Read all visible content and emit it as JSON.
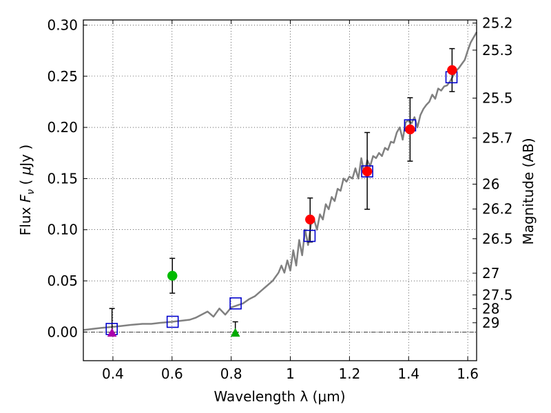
{
  "chart_data": {
    "type": "scatter",
    "xlabel": "Wavelength  λ (μm)",
    "ylabel_parts": [
      "Flux  ",
      "F",
      "ν",
      "  ( ",
      "μ",
      "Jy )"
    ],
    "ylabel_right": "Magnitude (AB)",
    "xlim": [
      0.3,
      1.63
    ],
    "ylim": [
      -0.028,
      0.305
    ],
    "grid": true,
    "x_ticks": [
      0.4,
      0.6,
      0.8,
      1.0,
      1.2,
      1.4,
      1.6
    ],
    "x_tick_labels": [
      "0.4",
      "0.6",
      "0.8",
      "1",
      "1.2",
      "1.4",
      "1.6"
    ],
    "y_ticks": [
      0.0,
      0.05,
      0.1,
      0.15,
      0.2,
      0.25,
      0.3
    ],
    "y_tick_labels": [
      "0.00",
      "0.05",
      "0.10",
      "0.15",
      "0.20",
      "0.25",
      "0.30"
    ],
    "right_ticks": [
      {
        "flux": 0.302,
        "label": "25.2"
      },
      {
        "flux": 0.2755,
        "label": "25.3"
      },
      {
        "flux": 0.2286,
        "label": "25.5"
      },
      {
        "flux": 0.1897,
        "label": "25.7"
      },
      {
        "flux": 0.1445,
        "label": "26"
      },
      {
        "flux": 0.1202,
        "label": "26.2"
      },
      {
        "flux": 0.0912,
        "label": "26.5"
      },
      {
        "flux": 0.0575,
        "label": "27"
      },
      {
        "flux": 0.0363,
        "label": "27.5"
      },
      {
        "flux": 0.0229,
        "label": "28"
      },
      {
        "flux": 0.0091,
        "label": "29"
      }
    ],
    "series": [
      {
        "name": "model spectrum",
        "kind": "line",
        "color": "#808080",
        "x": [
          0.3,
          0.33,
          0.36,
          0.4,
          0.43,
          0.46,
          0.5,
          0.53,
          0.56,
          0.6,
          0.63,
          0.66,
          0.68,
          0.7,
          0.72,
          0.74,
          0.76,
          0.78,
          0.8,
          0.82,
          0.84,
          0.86,
          0.88,
          0.9,
          0.92,
          0.94,
          0.96,
          0.97,
          0.98,
          0.99,
          1.0,
          1.01,
          1.02,
          1.03,
          1.04,
          1.05,
          1.06,
          1.07,
          1.08,
          1.09,
          1.1,
          1.11,
          1.12,
          1.13,
          1.14,
          1.15,
          1.16,
          1.17,
          1.18,
          1.19,
          1.2,
          1.21,
          1.22,
          1.23,
          1.24,
          1.25,
          1.26,
          1.27,
          1.28,
          1.29,
          1.3,
          1.31,
          1.32,
          1.33,
          1.34,
          1.35,
          1.36,
          1.37,
          1.38,
          1.39,
          1.4,
          1.41,
          1.42,
          1.43,
          1.44,
          1.45,
          1.46,
          1.47,
          1.48,
          1.49,
          1.5,
          1.51,
          1.52,
          1.53,
          1.54,
          1.55,
          1.56,
          1.57,
          1.58,
          1.59,
          1.6,
          1.61,
          1.62,
          1.63
        ],
        "y": [
          0.002,
          0.003,
          0.004,
          0.005,
          0.006,
          0.007,
          0.008,
          0.008,
          0.009,
          0.01,
          0.011,
          0.012,
          0.014,
          0.017,
          0.02,
          0.015,
          0.023,
          0.017,
          0.024,
          0.026,
          0.028,
          0.032,
          0.035,
          0.04,
          0.045,
          0.05,
          0.058,
          0.065,
          0.058,
          0.07,
          0.06,
          0.08,
          0.065,
          0.09,
          0.075,
          0.1,
          0.085,
          0.105,
          0.11,
          0.1,
          0.115,
          0.11,
          0.125,
          0.12,
          0.132,
          0.128,
          0.14,
          0.138,
          0.15,
          0.147,
          0.152,
          0.15,
          0.16,
          0.15,
          0.17,
          0.155,
          0.168,
          0.162,
          0.172,
          0.17,
          0.175,
          0.172,
          0.18,
          0.178,
          0.186,
          0.185,
          0.195,
          0.2,
          0.188,
          0.205,
          0.207,
          0.204,
          0.21,
          0.2,
          0.212,
          0.218,
          0.222,
          0.225,
          0.232,
          0.228,
          0.238,
          0.236,
          0.24,
          0.241,
          0.245,
          0.25,
          0.255,
          0.258,
          0.262,
          0.266,
          0.275,
          0.283,
          0.288,
          0.293
        ]
      },
      {
        "name": "open squares",
        "kind": "marker",
        "marker": "square",
        "color": "#0000cc",
        "x": [
          0.396,
          0.602,
          0.815,
          1.065,
          1.26,
          1.405,
          1.545
        ],
        "y": [
          0.003,
          0.01,
          0.028,
          0.094,
          0.157,
          0.202,
          0.249
        ]
      },
      {
        "name": "red detections",
        "kind": "marker",
        "marker": "circle",
        "color": "#ff0000",
        "x": [
          1.067,
          1.26,
          1.405,
          1.547
        ],
        "y": [
          0.11,
          0.157,
          0.198,
          0.256
        ],
        "yerr_low": [
          0.088,
          0.12,
          0.167,
          0.235
        ],
        "yerr_high": [
          0.131,
          0.195,
          0.229,
          0.277
        ]
      },
      {
        "name": "green detection",
        "kind": "marker",
        "marker": "circle",
        "color": "#00bb00",
        "x": [
          0.601
        ],
        "y": [
          0.055
        ],
        "yerr_low": [
          0.038
        ],
        "yerr_high": [
          0.072
        ]
      },
      {
        "name": "green upper limit",
        "kind": "marker",
        "marker": "triangle",
        "color": "#00aa00",
        "x": [
          0.814
        ],
        "y": [
          -0.001
        ],
        "yerr_low": [
          -0.001
        ],
        "yerr_high": [
          0.01
        ]
      },
      {
        "name": "purple upper limit",
        "kind": "marker",
        "marker": "triangle",
        "color": "#aa00aa",
        "x": [
          0.397
        ],
        "y": [
          -0.001
        ],
        "yerr_low": [
          -0.001
        ],
        "yerr_high": [
          0.023
        ]
      }
    ]
  }
}
